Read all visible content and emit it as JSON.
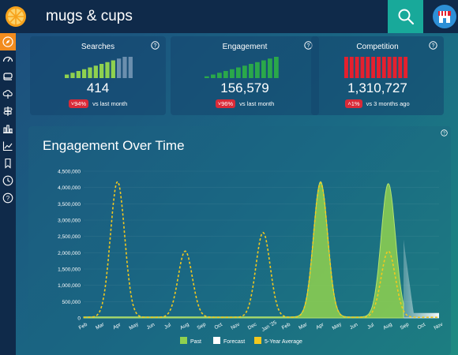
{
  "search": {
    "query": "mugs & cups"
  },
  "sidebar": {
    "items": [
      {
        "icon": "compass-icon"
      },
      {
        "icon": "gauge-icon"
      },
      {
        "icon": "layers-icon"
      },
      {
        "icon": "cloud-icon"
      },
      {
        "icon": "signpost-icon"
      },
      {
        "icon": "bar-chart-icon"
      },
      {
        "icon": "line-chart-icon"
      },
      {
        "icon": "bookmark-icon"
      },
      {
        "icon": "clock-icon"
      },
      {
        "icon": "help-icon"
      }
    ]
  },
  "cards": [
    {
      "title": "Searches",
      "value": "414",
      "delta": "94%",
      "delta_direction": "down",
      "comparison": "vs last month",
      "trend": [
        2,
        3,
        4,
        5,
        6,
        7,
        8,
        9,
        10,
        11,
        12,
        12
      ],
      "trend_color": "#8fd14f",
      "trend_faded_last": 3
    },
    {
      "title": "Engagement",
      "value": "156,579",
      "delta": "96%",
      "delta_direction": "down",
      "comparison": "vs last month",
      "trend": [
        1,
        2,
        3,
        4,
        5,
        6,
        7,
        8,
        9,
        10,
        11,
        12
      ],
      "trend_color": "#2aa84a",
      "trend_faded_last": 0
    },
    {
      "title": "Competition",
      "value": "1,310,727",
      "delta": "1%",
      "delta_direction": "up",
      "comparison": "vs 3 months ago",
      "trend": [
        10,
        10,
        10,
        10,
        10,
        10,
        10,
        10,
        10,
        10,
        10,
        10
      ],
      "trend_color": "#e5202e",
      "trend_faded_last": 0
    }
  ],
  "chart_data": {
    "type": "area",
    "title": "Engagement Over Time",
    "categories": [
      "Feb",
      "Mar",
      "Apr",
      "May",
      "Jun",
      "Jul",
      "Aug",
      "Sep",
      "Oct",
      "Nov",
      "Dec",
      "Jan '25",
      "Feb",
      "Mar",
      "Apr",
      "May",
      "Jun",
      "Jul",
      "Aug",
      "Sep",
      "Oct",
      "Nov"
    ],
    "ylim": [
      0,
      4500000
    ],
    "yticks": [
      0,
      500000,
      1000000,
      1500000,
      2000000,
      2500000,
      3000000,
      3500000,
      4000000,
      4500000
    ],
    "ytick_labels": [
      "0",
      "500,000",
      "1,000,000",
      "1,500,000",
      "2,000,000",
      "2,500,000",
      "3,000,000",
      "3,500,000",
      "4,000,000",
      "4,500,000"
    ],
    "series": [
      {
        "name": "Past",
        "color": "#8fd14f",
        "style": "area",
        "x": [
          0,
          13,
          14,
          15,
          16,
          17,
          18,
          18.9
        ],
        "peaks": [
          {
            "x": 14,
            "y": 4180000
          },
          {
            "x": 18,
            "y": 4120000
          }
        ],
        "baseline": 30000
      },
      {
        "name": "Forecast",
        "color": "#ffffff",
        "style": "area",
        "x_start": 18.9,
        "x_end": 21,
        "start_value": 2400000,
        "end_value": 150000
      },
      {
        "name": "5-Year Average",
        "color": "#f2c81e",
        "style": "dashed",
        "peaks": [
          {
            "x": 2,
            "y": 4180000
          },
          {
            "x": 6,
            "y": 2050000
          },
          {
            "x": 10.6,
            "y": 2620000
          },
          {
            "x": 14,
            "y": 4150000
          },
          {
            "x": 18,
            "y": 2050000
          }
        ],
        "baseline": 20000
      }
    ],
    "legend": [
      "Past",
      "Forecast",
      "5-Year Average"
    ],
    "legend_colors": [
      "#8fd14f",
      "#ffffff",
      "#f2c81e"
    ],
    "legend_position": "bottom"
  },
  "colors": {
    "accent_orange": "#f28c1e",
    "teal": "#18a99a",
    "badge_red": "#d92a38"
  }
}
